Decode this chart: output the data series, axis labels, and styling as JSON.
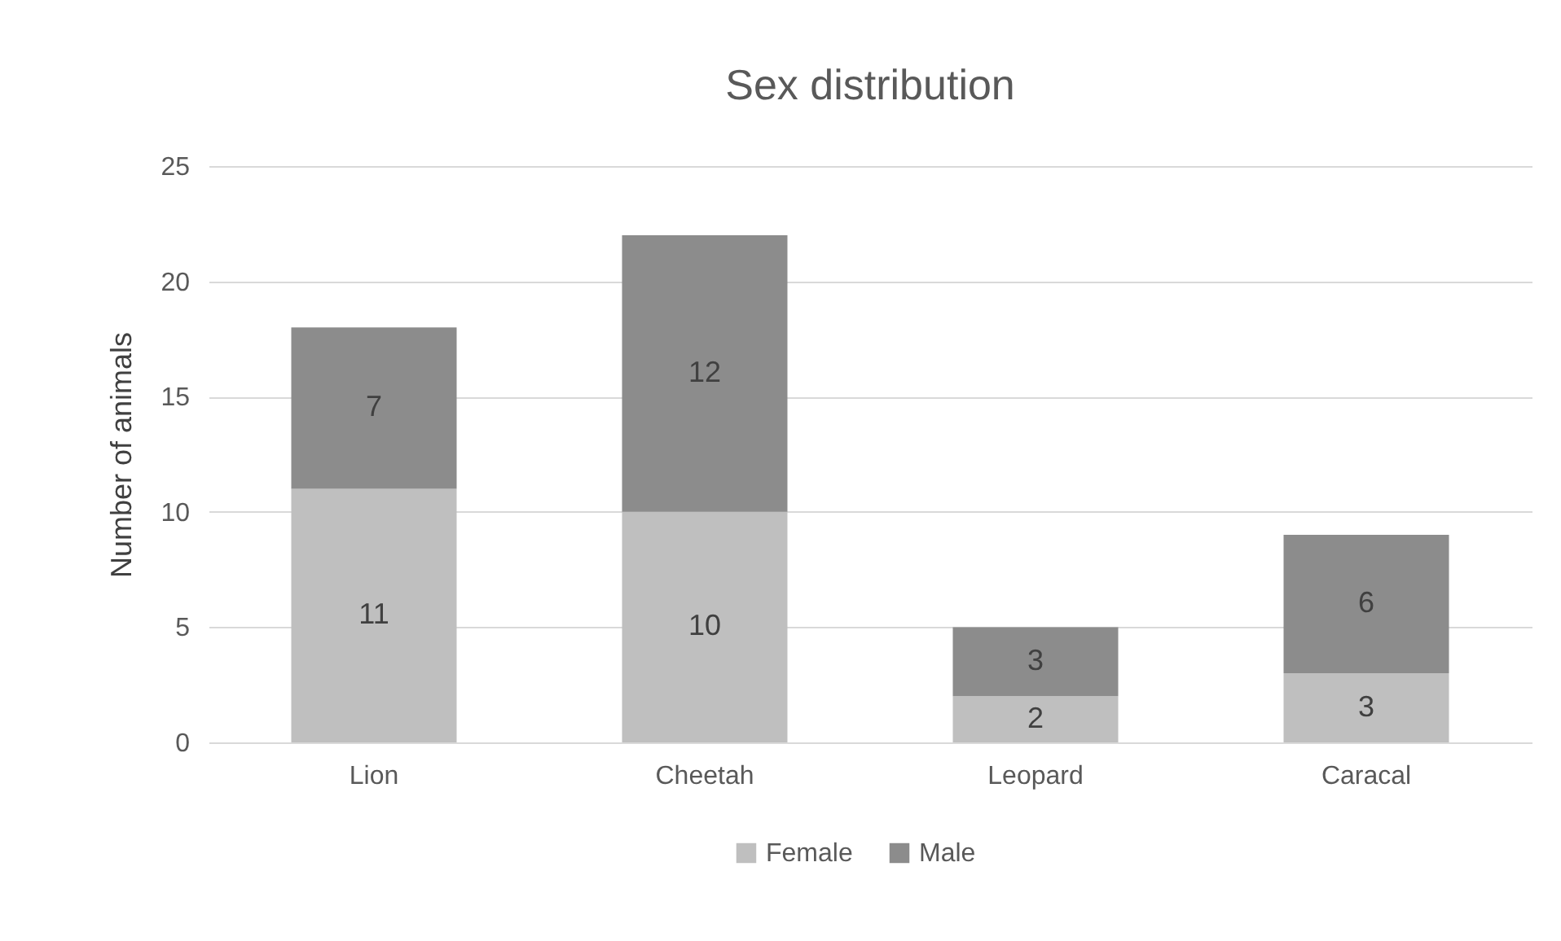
{
  "chart_data": {
    "type": "bar",
    "title": "Sex distribution",
    "ylabel": "Number of animals",
    "categories": [
      "Lion",
      "Cheetah",
      "Leopard",
      "Caracal"
    ],
    "stacked": true,
    "series": [
      {
        "name": "Female",
        "color": "#bfbfbf",
        "values": [
          11,
          10,
          2,
          3
        ]
      },
      {
        "name": "Male",
        "color": "#8c8c8c",
        "values": [
          7,
          12,
          3,
          6
        ]
      }
    ],
    "ylim": [
      0,
      25
    ],
    "yticks": [
      0,
      5,
      10,
      15,
      20,
      25
    ],
    "grid": "y",
    "legend": "bottom",
    "data_labels": true
  }
}
